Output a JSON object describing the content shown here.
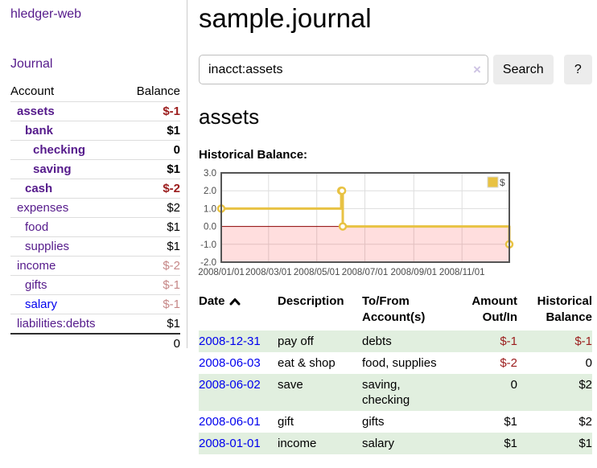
{
  "colors": {
    "link_purple": "#551a8b",
    "link_blue": "#0000ee",
    "negative_strong_red": "#9b1c1c",
    "negative_soft_red": "#c68787",
    "row_stripe_green": "#e1efdf",
    "chart_line_gold": "#e8c243",
    "chart_zero_line": "#8b0000"
  },
  "sidebar": {
    "app_title": "hledger-web",
    "nav_journal": "Journal",
    "accounts": {
      "header_account": "Account",
      "header_balance": "Balance",
      "rows": [
        {
          "name": "assets",
          "depth": 1,
          "bold": true,
          "balance": "$-1",
          "balance_tone": "negative-strong",
          "link_tone": "purple"
        },
        {
          "name": "bank",
          "depth": 2,
          "bold": true,
          "balance": "$1",
          "balance_tone": "normal",
          "link_tone": "purple"
        },
        {
          "name": "checking",
          "depth": 3,
          "bold": true,
          "balance": "0",
          "balance_tone": "normal",
          "link_tone": "purple"
        },
        {
          "name": "saving",
          "depth": 3,
          "bold": true,
          "balance": "$1",
          "balance_tone": "normal",
          "link_tone": "purple"
        },
        {
          "name": "cash",
          "depth": 2,
          "bold": true,
          "balance": "$-2",
          "balance_tone": "negative-strong",
          "link_tone": "purple"
        },
        {
          "name": "expenses",
          "depth": 1,
          "bold": false,
          "balance": "$2",
          "balance_tone": "normal",
          "link_tone": "purple"
        },
        {
          "name": "food",
          "depth": 2,
          "bold": false,
          "balance": "$1",
          "balance_tone": "normal",
          "link_tone": "purple"
        },
        {
          "name": "supplies",
          "depth": 2,
          "bold": false,
          "balance": "$1",
          "balance_tone": "normal",
          "link_tone": "purple"
        },
        {
          "name": "income",
          "depth": 1,
          "bold": false,
          "balance": "$-2",
          "balance_tone": "negative-soft",
          "link_tone": "purple"
        },
        {
          "name": "gifts",
          "depth": 2,
          "bold": false,
          "balance": "$-1",
          "balance_tone": "negative-soft",
          "link_tone": "purple"
        },
        {
          "name": "salary",
          "depth": 2,
          "bold": false,
          "balance": "$-1",
          "balance_tone": "negative-soft",
          "link_tone": "blue"
        },
        {
          "name": "liabilities:debts",
          "depth": 1,
          "bold": false,
          "balance": "$1",
          "balance_tone": "normal",
          "link_tone": "purple"
        }
      ],
      "total": "0"
    }
  },
  "header": {
    "title": "sample.journal"
  },
  "search": {
    "value": "inacct:assets",
    "clear_icon": "×",
    "button_label": "Search",
    "help_label": "?"
  },
  "account_page": {
    "title": "assets",
    "chart_label": "Historical Balance:"
  },
  "chart_data": {
    "type": "line",
    "title": "Historical Balance:",
    "x_range": [
      "2008-01-01",
      "2008-12-31"
    ],
    "ylim": [
      -2,
      3
    ],
    "y_ticks": [
      "3.0",
      "2.0",
      "1.0",
      "0.0",
      "-1.0",
      "-2.0"
    ],
    "x_tick_dates": [
      "2008-01-01",
      "2008-03-01",
      "2008-05-01",
      "2008-07-01",
      "2008-09-01",
      "2008-11-01"
    ],
    "x_tick_labels": [
      "2008/01/01",
      "2008/03/01",
      "2008/05/01",
      "2008/07/01",
      "2008/09/01",
      "2008/11/01"
    ],
    "legend": {
      "label": "$",
      "position": "top-right"
    },
    "series": [
      {
        "name": "$",
        "type": "step",
        "color": "#e8c243",
        "points": [
          {
            "date": "2008-01-01",
            "value": 1
          },
          {
            "date": "2008-06-01",
            "value": 2
          },
          {
            "date": "2008-06-02",
            "value": 2
          },
          {
            "date": "2008-06-03",
            "value": 0
          },
          {
            "date": "2008-12-31",
            "value": -1
          }
        ]
      }
    ],
    "styles": {
      "negative_region_fill": "rgba(255,0,0,0.13)",
      "zero_line_color": "#8b0000",
      "grid_color": "#dedede",
      "frame_color": "#545454",
      "tick_label_color": "#4a4a4a"
    }
  },
  "register": {
    "headers": {
      "date": "Date",
      "sort_icon": "chevron-up",
      "description": "Description",
      "accounts": "To/From Account(s)",
      "amount": "Amount Out/In",
      "balance": "Historical Balance"
    },
    "rows": [
      {
        "date": "2008-12-31",
        "description": "pay off",
        "accounts": "debts",
        "amount": "$-1",
        "balance": "$-1"
      },
      {
        "date": "2008-06-03",
        "description": "eat & shop",
        "accounts": "food, supplies",
        "amount": "$-2",
        "balance": "0"
      },
      {
        "date": "2008-06-02",
        "description": "save",
        "accounts": "saving, checking",
        "amount": "0",
        "balance": "$2"
      },
      {
        "date": "2008-06-01",
        "description": "gift",
        "accounts": "gifts",
        "amount": "$1",
        "balance": "$2"
      },
      {
        "date": "2008-01-01",
        "description": "income",
        "accounts": "salary",
        "amount": "$1",
        "balance": "$1"
      }
    ]
  }
}
